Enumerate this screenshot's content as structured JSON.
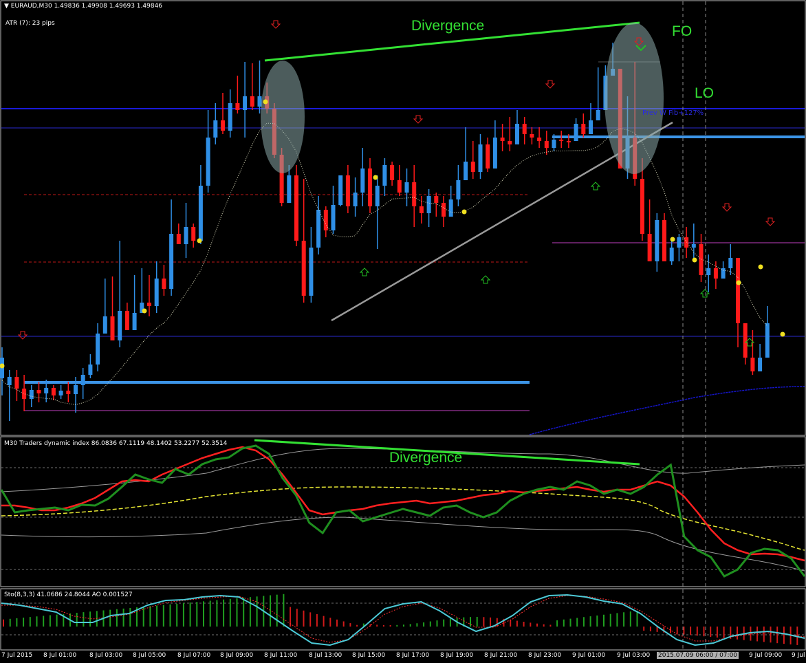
{
  "header": {
    "symbol_line": "EURAUD,M30  1.49836 1.49908 1.49693 1.49846",
    "atr_label": "ATR (7):   23 pips"
  },
  "annotations": {
    "divergence_price": "Divergence",
    "divergence_tdi": "Divergence",
    "fo": "FO",
    "lo": "LO",
    "fib_label": "Prev W Fib+127%"
  },
  "indicators": {
    "tdi_label": "M30 Traders dynamic index 86.0836 67.1119 48.1402 53.2277 52.3514",
    "sto_label": "Sto(8,3,3) 41.0686 24.8044  AO 0.001527"
  },
  "time_axis": {
    "labels": [
      "7 Jul 2015",
      "8 Jul 01:00",
      "8 Jul 03:00",
      "8 Jul 05:00",
      "8 Jul 07:00",
      "8 Jul 09:00",
      "8 Jul 11:00",
      "8 Jul 13:00",
      "8 Jul 15:00",
      "8 Jul 17:00",
      "8 Jul 19:00",
      "8 Jul 21:00",
      "8 Jul 23:00",
      "9 Jul 01:00",
      "9 Jul 03:00",
      "9 Jul 09:00",
      "9 Jul"
    ],
    "highlight": "2015.07.09 06:00 / 07:00"
  },
  "colors": {
    "bull": "#2f8fe6",
    "bear": "#ff1a1a",
    "trend_green": "#33e033",
    "tdi_green": "#1f8f1f",
    "tdi_red": "#ff2020",
    "tdi_yellow": "#e6e633",
    "sto_cyan": "#4cc9d6",
    "blue_line": "#1515c8"
  },
  "chart_data": {
    "type": "candlestick",
    "symbol": "EURAUD",
    "timeframe": "M30",
    "quote": {
      "open": 1.49836,
      "high": 1.49908,
      "low": 1.49693,
      "close": 1.49846
    },
    "atr_pips": 23,
    "candles": [
      [
        550,
        520,
        575,
        505
      ],
      [
        560,
        548,
        612,
        538
      ],
      [
        548,
        565,
        583,
        538
      ],
      [
        565,
        580,
        598,
        545
      ],
      [
        580,
        567,
        592,
        560
      ],
      [
        567,
        572,
        585,
        555
      ],
      [
        572,
        564,
        585,
        552
      ],
      [
        564,
        575,
        582,
        560
      ],
      [
        575,
        568,
        580,
        560
      ],
      [
        568,
        573,
        585,
        555
      ],
      [
        573,
        560,
        600,
        548
      ],
      [
        560,
        545,
        580,
        535
      ],
      [
        545,
        530,
        550,
        515
      ],
      [
        530,
        485,
        540,
        470
      ],
      [
        485,
        460,
        470,
        405
      ],
      [
        460,
        495,
        475,
        402
      ],
      [
        495,
        452,
        505,
        350
      ],
      [
        452,
        480,
        470,
        440
      ],
      [
        480,
        455,
        460,
        400
      ],
      [
        455,
        440,
        452,
        390
      ],
      [
        440,
        445,
        460,
        400
      ],
      [
        445,
        405,
        455,
        380
      ],
      [
        405,
        420,
        430,
        385
      ],
      [
        420,
        340,
        430,
        290
      ],
      [
        340,
        355,
        350,
        325
      ],
      [
        355,
        330,
        375,
        295
      ],
      [
        330,
        350,
        360,
        325
      ],
      [
        350,
        270,
        355,
        240
      ],
      [
        270,
        200,
        280,
        160
      ],
      [
        200,
        175,
        210,
        150
      ],
      [
        175,
        190,
        195,
        135
      ],
      [
        190,
        150,
        200,
        130
      ],
      [
        150,
        160,
        165,
        110
      ],
      [
        160,
        140,
        200,
        90
      ],
      [
        140,
        155,
        160,
        92
      ],
      [
        155,
        140,
        165,
        88
      ],
      [
        140,
        158,
        165,
        120
      ],
      [
        158,
        225,
        230,
        150
      ],
      [
        225,
        295,
        300,
        215
      ],
      [
        295,
        255,
        265,
        240
      ],
      [
        255,
        350,
        358,
        240
      ],
      [
        350,
        430,
        440,
        260
      ],
      [
        430,
        360,
        440,
        330
      ],
      [
        360,
        305,
        370,
        285
      ],
      [
        305,
        335,
        345,
        300
      ],
      [
        335,
        298,
        340,
        270
      ],
      [
        298,
        255,
        300,
        255
      ],
      [
        255,
        300,
        310,
        240
      ],
      [
        300,
        280,
        315,
        258
      ],
      [
        280,
        245,
        300,
        215
      ],
      [
        245,
        300,
        310,
        230
      ],
      [
        300,
        270,
        362,
        255
      ],
      [
        270,
        240,
        285,
        230
      ],
      [
        240,
        262,
        270,
        235
      ],
      [
        262,
        280,
        285,
        240
      ],
      [
        280,
        265,
        300,
        245
      ],
      [
        265,
        300,
        330,
        240
      ],
      [
        300,
        310,
        325,
        285
      ],
      [
        310,
        285,
        330,
        275
      ],
      [
        285,
        295,
        315,
        280
      ],
      [
        295,
        315,
        330,
        285
      ],
      [
        315,
        290,
        305,
        270
      ],
      [
        290,
        262,
        300,
        240
      ],
      [
        262,
        235,
        250,
        185
      ],
      [
        235,
        250,
        260,
        205
      ],
      [
        250,
        210,
        260,
        195
      ],
      [
        210,
        245,
        250,
        200
      ],
      [
        245,
        200,
        220,
        175
      ],
      [
        200,
        205,
        220,
        180
      ],
      [
        205,
        210,
        220,
        170
      ],
      [
        210,
        180,
        185,
        160
      ],
      [
        180,
        195,
        210,
        170
      ],
      [
        195,
        200,
        210,
        185
      ],
      [
        200,
        205,
        215,
        185
      ],
      [
        205,
        215,
        225,
        190
      ],
      [
        215,
        203,
        220,
        195
      ],
      [
        203,
        205,
        215,
        190
      ],
      [
        205,
        205,
        215,
        195
      ],
      [
        205,
        180,
        185,
        172
      ],
      [
        180,
        195,
        200,
        165
      ],
      [
        195,
        175,
        185,
        150
      ],
      [
        175,
        160,
        165,
        98
      ],
      [
        160,
        110,
        120,
        95
      ],
      [
        110,
        100,
        110,
        62
      ],
      [
        100,
        245,
        245,
        100
      ],
      [
        245,
        200,
        260,
        140
      ],
      [
        200,
        260,
        270,
        90
      ],
      [
        260,
        340,
        350,
        230
      ],
      [
        340,
        380,
        380,
        290
      ],
      [
        380,
        320,
        395,
        310
      ],
      [
        320,
        380,
        380,
        310
      ],
      [
        380,
        360,
        385,
        345
      ],
      [
        360,
        345,
        380,
        340
      ],
      [
        345,
        360,
        375,
        330
      ],
      [
        360,
        355,
        380,
        325
      ],
      [
        355,
        400,
        410,
        340
      ],
      [
        400,
        390,
        425,
        370
      ],
      [
        390,
        405,
        420,
        380
      ],
      [
        405,
        390,
        405,
        380
      ],
      [
        390,
        375,
        400,
        355
      ],
      [
        375,
        470,
        505,
        410
      ],
      [
        470,
        520,
        530,
        470
      ],
      [
        520,
        540,
        545,
        480
      ],
      [
        540,
        520,
        530,
        500
      ],
      [
        520,
        470,
        505,
        445
      ]
    ]
  }
}
